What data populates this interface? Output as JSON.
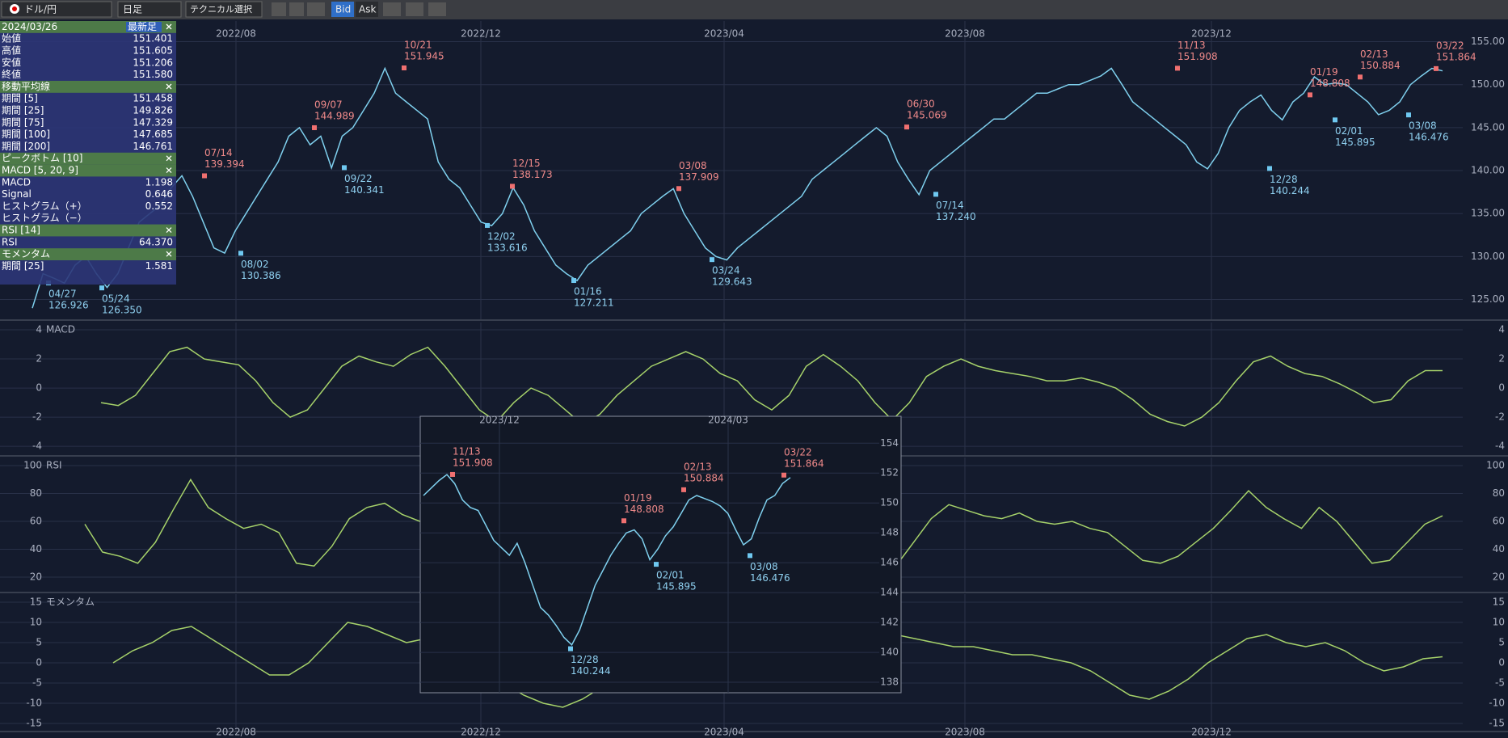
{
  "toolbar": {
    "pair": "ドル/円",
    "timeframe": "日足",
    "technical": "テクニカル選択",
    "bid": "Bid",
    "ask": "Ask"
  },
  "info_panel": {
    "sections": [
      {
        "title": "2024/03/26",
        "badge": "最新足",
        "rows": [
          {
            "label": "始値",
            "value": "151.401"
          },
          {
            "label": "高値",
            "value": "151.605"
          },
          {
            "label": "安値",
            "value": "151.206"
          },
          {
            "label": "終値",
            "value": "151.580"
          }
        ]
      },
      {
        "title": "移動平均線",
        "rows": [
          {
            "label": "期間 [5]",
            "value": "151.458"
          },
          {
            "label": "期間 [25]",
            "value": "149.826"
          },
          {
            "label": "期間 [75]",
            "value": "147.329"
          },
          {
            "label": "期間 [100]",
            "value": "147.685"
          },
          {
            "label": "期間 [200]",
            "value": "146.761"
          }
        ]
      },
      {
        "title": "ピークボトム [10]",
        "rows": []
      },
      {
        "title": "MACD [5, 20, 9]",
        "rows": [
          {
            "label": "MACD",
            "value": "1.198"
          },
          {
            "label": "Signal",
            "value": "0.646"
          },
          {
            "label": "ヒストグラム（+）",
            "value": "0.552"
          },
          {
            "label": "ヒストグラム（−）"
          }
        ]
      },
      {
        "title": "RSI [14]",
        "rows": [
          {
            "label": "RSI",
            "value": "64.370"
          }
        ]
      },
      {
        "title": "モメンタム",
        "rows": [
          {
            "label": "期間 [25]",
            "value": "1.581"
          }
        ]
      }
    ]
  },
  "main_chart": {
    "x_labels": [
      "2022/08",
      "2022/12",
      "2023/04",
      "2023/08",
      "2023/12"
    ],
    "ylim": [
      122.7,
      157.4
    ],
    "yticks": [
      {
        "value": 155,
        "label": "155.00"
      },
      {
        "value": 150,
        "label": "150.00"
      },
      {
        "value": 145,
        "label": "145.00"
      },
      {
        "value": 140,
        "label": "140.00"
      },
      {
        "value": 135,
        "label": "135.00"
      },
      {
        "value": 130,
        "label": "130.00"
      },
      {
        "value": 125,
        "label": "125.00"
      }
    ],
    "close": [
      124,
      128,
      127.5,
      126.9,
      129,
      130,
      128,
      126.4,
      128,
      131,
      134,
      135,
      136,
      138,
      139.4,
      137,
      134,
      131,
      130.4,
      133,
      135,
      137,
      139,
      141,
      144,
      145,
      143,
      144,
      140.3,
      144,
      145,
      147,
      149,
      151.9,
      149,
      148,
      147,
      146,
      141,
      139,
      138,
      136,
      134,
      133.6,
      135,
      138,
      136,
      133,
      131,
      129,
      128,
      127.2,
      129,
      130,
      131,
      132,
      133,
      135,
      136,
      137,
      137.9,
      135,
      133,
      131,
      130,
      129.6,
      131,
      132,
      133,
      134,
      135,
      136,
      137,
      139,
      140,
      141,
      142,
      143,
      144,
      145,
      144,
      141,
      139,
      137.2,
      140,
      141,
      142,
      143,
      144,
      145,
      146,
      146,
      147,
      148,
      149,
      149,
      149.5,
      150,
      150,
      150.5,
      151,
      151.9,
      150,
      148,
      147,
      146,
      145,
      144,
      143,
      141,
      140.2,
      142,
      145,
      147,
      148,
      148.8,
      147,
      145.9,
      148,
      149,
      150.9,
      150,
      150.2,
      150,
      149,
      148,
      146.5,
      147,
      148,
      150,
      151,
      151.9,
      151.6
    ],
    "peaks": [
      {
        "date": "07/14",
        "value": 139.394
      },
      {
        "date": "09/07",
        "value": 144.989
      },
      {
        "date": "10/21",
        "value": 151.945
      },
      {
        "date": "12/15",
        "value": 138.173
      },
      {
        "date": "03/08",
        "value": 137.909
      },
      {
        "date": "06/30",
        "value": 145.069
      },
      {
        "date": "11/13",
        "value": 151.908
      },
      {
        "date": "01/19",
        "value": 148.808
      },
      {
        "date": "02/13",
        "value": 150.884
      },
      {
        "date": "03/22",
        "value": 151.864
      }
    ],
    "bottoms": [
      {
        "date": "04/27",
        "value": 126.926
      },
      {
        "date": "05/24",
        "value": {
          "value": 126.35,
          "label": "126.350"
        }
      },
      {
        "date": "08/02",
        "value": 130.386
      },
      {
        "date": "09/22",
        "value": 140.341
      },
      {
        "date": "12/02",
        "value": 133.616
      },
      {
        "date": "01/16",
        "value": 127.211
      },
      {
        "date": "03/24",
        "value": 129.643
      },
      {
        "date": "07/14",
        "value": {
          "value": 137.24,
          "label": "137.240"
        }
      },
      {
        "date": "12/28",
        "value": 140.244
      },
      {
        "date": "02/01",
        "value": 145.895
      },
      {
        "date": "03/08",
        "value": 146.476
      }
    ]
  },
  "macd_panel": {
    "title": "MACD",
    "ylim": [
      -4.6,
      4.5
    ],
    "yticks": [
      4,
      2,
      0,
      -2,
      -4
    ],
    "values": [
      -1,
      -1.2,
      -0.5,
      1,
      2.5,
      2.8,
      2,
      1.8,
      1.6,
      0.5,
      -1,
      -2,
      -1.5,
      0,
      1.5,
      2.2,
      1.8,
      1.5,
      2.3,
      2.8,
      1.5,
      0,
      -1.5,
      -2.3,
      -1,
      0,
      -0.5,
      -1.5,
      -2.5,
      -1.8,
      -0.5,
      0.5,
      1.5,
      2,
      2.5,
      2,
      1,
      0.5,
      -0.8,
      -1.5,
      -0.5,
      1.5,
      2.3,
      1.5,
      0.5,
      -1,
      -2.2,
      -1,
      0.8,
      1.5,
      2,
      1.5,
      1.2,
      1,
      0.8,
      0.5,
      0.5,
      0.7,
      0.4,
      0,
      -0.8,
      -1.8,
      -2.3,
      -2.6,
      -2,
      -1,
      0.5,
      1.8,
      2.2,
      1.5,
      1,
      0.8,
      0.3,
      -0.3,
      -1,
      -0.8,
      0.5,
      1.2,
      1.2
    ]
  },
  "rsi_panel": {
    "title": "RSI",
    "ylim": [
      9.6,
      105.8
    ],
    "yticks": [
      100,
      80,
      60,
      40,
      20
    ],
    "values": [
      58,
      38,
      35,
      30,
      45,
      68,
      90,
      70,
      62,
      55,
      58,
      52,
      30,
      28,
      42,
      62,
      70,
      73,
      65,
      60,
      78,
      62,
      40,
      32,
      35,
      50,
      45,
      35,
      25,
      35,
      52,
      62,
      70,
      75,
      68,
      62,
      55,
      45,
      38,
      45,
      55,
      60,
      63,
      58,
      50,
      40,
      28,
      45,
      62,
      72,
      68,
      64,
      62,
      66,
      60,
      58,
      60,
      55,
      52,
      42,
      32,
      30,
      35,
      45,
      55,
      68,
      82,
      70,
      62,
      55,
      70,
      60,
      45,
      30,
      32,
      45,
      58,
      64
    ]
  },
  "momentum_panel": {
    "title": "モメンタム",
    "ylim": [
      -16.8,
      17
    ],
    "yticks": [
      15,
      10,
      5,
      0,
      -5,
      -10,
      -15
    ],
    "values": [
      0,
      3,
      5,
      8,
      9,
      6,
      3,
      0,
      -3,
      -3,
      0,
      5,
      10,
      9,
      7,
      5,
      6,
      4,
      3,
      -1,
      -5,
      -8,
      -10,
      -11,
      -9,
      -6,
      -7,
      -4,
      0,
      3,
      6,
      8,
      5,
      3,
      2,
      -1,
      -3,
      -3,
      -1,
      3,
      7,
      6,
      5,
      4,
      4,
      3,
      2,
      2,
      1,
      0,
      -2,
      -5,
      -8,
      -9,
      -7,
      -4,
      0,
      3,
      6,
      7,
      5,
      4,
      5,
      3,
      0,
      -2,
      -1,
      1,
      1.5
    ]
  },
  "inset_chart": {
    "x_labels": [
      "2023/12",
      "2024/03"
    ],
    "ylim": [
      137.3,
      155.8
    ],
    "yticks": [
      154,
      152,
      150,
      148,
      146,
      144,
      142,
      140,
      138
    ],
    "close": [
      150.5,
      151,
      151.5,
      151.9,
      151.3,
      150.2,
      149.7,
      149.5,
      148.5,
      147.5,
      147,
      146.5,
      147.3,
      146,
      144.5,
      143,
      142.5,
      141.8,
      141,
      140.5,
      141.5,
      143,
      144.5,
      145.5,
      146.5,
      147.3,
      148,
      148.2,
      147.6,
      146.2,
      146.9,
      147.8,
      148.4,
      149.3,
      150.2,
      150.5,
      150.3,
      150.1,
      149.8,
      149.3,
      148.2,
      147.2,
      147.6,
      149,
      150.2,
      150.5,
      151.3,
      151.7
    ],
    "peaks": [
      {
        "date": "11/13",
        "value": 151.908
      },
      {
        "date": "01/19",
        "value": 148.808
      },
      {
        "date": "02/13",
        "value": 150.884
      },
      {
        "date": "03/22",
        "value": 151.864
      }
    ],
    "bottoms": [
      {
        "date": "12/28",
        "value": 140.244
      },
      {
        "date": "02/01",
        "value": 145.895
      },
      {
        "date": "03/08",
        "value": 146.476
      }
    ]
  }
}
